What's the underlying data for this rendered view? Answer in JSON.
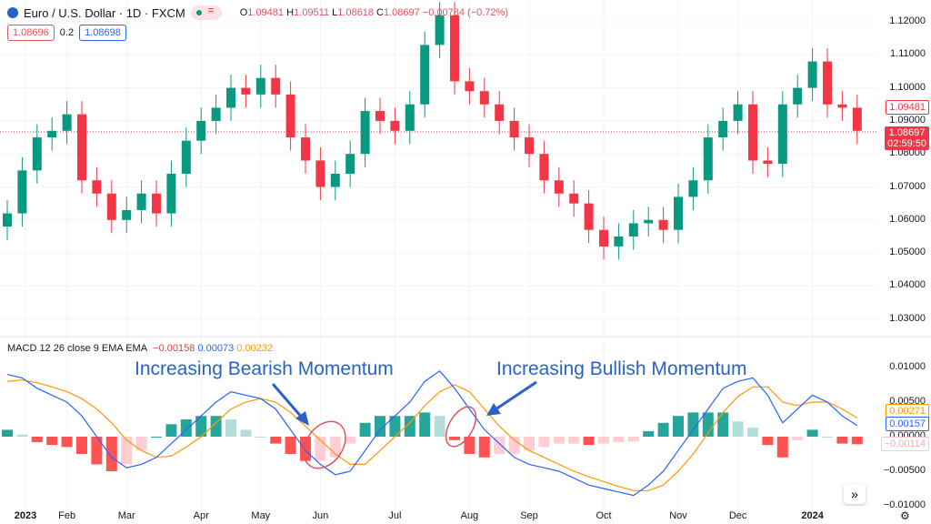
{
  "header": {
    "symbol": "Euro / U.S. Dollar · 1D · FXCM",
    "o_label": "O",
    "o": "1.09481",
    "h_label": "H",
    "h": "1.09511",
    "l_label": "L",
    "l": "1.08618",
    "c_label": "C",
    "c": "1.08697",
    "change": "−0.00784 (−0.72%)",
    "sell": "1.08696",
    "spread": "0.2",
    "buy": "1.08698"
  },
  "price_axis": {
    "ticks": [
      "1.12000",
      "1.11000",
      "1.10000",
      "1.09000",
      "1.08000",
      "1.07000",
      "1.06000",
      "1.05000",
      "1.04000",
      "1.03000"
    ],
    "open_label": "1.09481",
    "last_label": "1.08697",
    "countdown": "02:59:50"
  },
  "macd_header": {
    "title": "MACD 12 26 close 9 EMA EMA",
    "hist": "−0.00158",
    "macd": "0.00073",
    "signal": "0.00232"
  },
  "macd_axis": {
    "ticks": [
      "0.01000",
      "0.00500",
      "0.00000",
      "−0.00500",
      "−0.01000"
    ],
    "signal_label": "0.00271",
    "macd_label": "0.00157",
    "hist_label": "−0.00114"
  },
  "time_axis": [
    "2023",
    "Feb",
    "Mar",
    "Apr",
    "May",
    "Jun",
    "Jul",
    "Aug",
    "Sep",
    "Oct",
    "Nov",
    "Dec",
    "2024"
  ],
  "annotations": {
    "bearish": "Increasing Bearish Momentum",
    "bullish": "Increasing Bullish Momentum"
  },
  "colors": {
    "up": "#089981",
    "down": "#f23645",
    "macd": "#2962ff",
    "signal": "#ff9800",
    "annotation": "#2962c8"
  },
  "chart_data": {
    "type": "candlestick",
    "ylim": [
      1.025,
      1.125
    ],
    "close": [
      1.062,
      1.075,
      1.085,
      1.087,
      1.092,
      1.072,
      1.068,
      1.06,
      1.063,
      1.068,
      1.062,
      1.074,
      1.084,
      1.09,
      1.094,
      1.1,
      1.098,
      1.103,
      1.098,
      1.085,
      1.078,
      1.07,
      1.074,
      1.08,
      1.093,
      1.09,
      1.087,
      1.095,
      1.113,
      1.122,
      1.102,
      1.099,
      1.095,
      1.09,
      1.085,
      1.08,
      1.072,
      1.068,
      1.065,
      1.057,
      1.052,
      1.055,
      1.059,
      1.06,
      1.057,
      1.067,
      1.072,
      1.085,
      1.09,
      1.095,
      1.078,
      1.077,
      1.095,
      1.1,
      1.108,
      1.095,
      1.094,
      1.087
    ],
    "macd": {
      "ylim": [
        -0.0105,
        0.0115
      ],
      "macd": [
        0.009,
        0.0085,
        0.007,
        0.006,
        0.005,
        0.003,
        0.0,
        -0.003,
        -0.0045,
        -0.004,
        -0.003,
        -0.001,
        0.001,
        0.003,
        0.005,
        0.0065,
        0.006,
        0.0055,
        0.004,
        0.001,
        -0.002,
        -0.004,
        -0.0055,
        -0.005,
        -0.002,
        0.001,
        0.003,
        0.005,
        0.008,
        0.0095,
        0.007,
        0.004,
        0.001,
        -0.001,
        -0.003,
        -0.004,
        -0.0045,
        -0.005,
        -0.006,
        -0.007,
        -0.0075,
        -0.008,
        -0.0085,
        -0.007,
        -0.005,
        -0.002,
        0.001,
        0.004,
        0.007,
        0.008,
        0.0085,
        0.006,
        0.002,
        0.004,
        0.006,
        0.005,
        0.003,
        0.0016
      ],
      "signal": [
        0.008,
        0.0082,
        0.0078,
        0.0072,
        0.0065,
        0.0055,
        0.004,
        0.002,
        -0.0005,
        -0.002,
        -0.003,
        -0.0028,
        -0.0015,
        0.0,
        0.002,
        0.004,
        0.005,
        0.0055,
        0.005,
        0.0035,
        0.0015,
        -0.0005,
        -0.0025,
        -0.004,
        -0.004,
        -0.002,
        0.0,
        0.002,
        0.0045,
        0.0065,
        0.0075,
        0.0065,
        0.004,
        0.0015,
        -0.0005,
        -0.002,
        -0.003,
        -0.004,
        -0.005,
        -0.0058,
        -0.0065,
        -0.0072,
        -0.0078,
        -0.0078,
        -0.007,
        -0.005,
        -0.0025,
        0.0005,
        0.0035,
        0.0058,
        0.0072,
        0.0072,
        0.005,
        0.0045,
        0.005,
        0.005,
        0.004,
        0.0027
      ]
    }
  }
}
